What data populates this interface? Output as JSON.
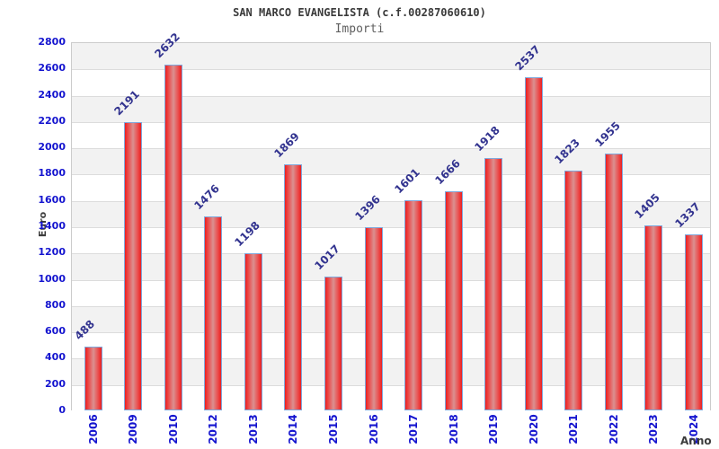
{
  "header": {
    "title": "SAN MARCO EVANGELISTA (c.f.00287060610)",
    "subtitle": "Importi"
  },
  "axes": {
    "y_label": "Euro",
    "x_label": "Anno",
    "y_ticks": [
      0,
      200,
      400,
      600,
      800,
      1000,
      1200,
      1400,
      1600,
      1800,
      2000,
      2200,
      2400,
      2600,
      2800
    ]
  },
  "chart_data": {
    "type": "bar",
    "title": "SAN MARCO EVANGELISTA (c.f.00287060610)",
    "subtitle": "Importi",
    "xlabel": "Anno",
    "ylabel": "Euro",
    "categories": [
      "2006",
      "2009",
      "2010",
      "2012",
      "2013",
      "2014",
      "2015",
      "2016",
      "2017",
      "2018",
      "2019",
      "2020",
      "2021",
      "2022",
      "2023",
      "2024"
    ],
    "values": [
      488,
      2191,
      2632,
      1476,
      1198,
      1869,
      1017,
      1396,
      1601,
      1666,
      1918,
      2537,
      1823,
      1955,
      1405,
      1337
    ],
    "ylim": [
      0,
      2800
    ],
    "y_tick_step": 200,
    "grid": "horizontal-bands-alternating",
    "legend": "none",
    "value_labels": "rotated-45-above-bars",
    "x_tick_rotation": -90
  },
  "colors": {
    "bar_edge_red": "#e82020",
    "bar_center_pink": "#db9090",
    "bar_border_blue": "#7fa8dc",
    "tick_label_blue": "#1414cf",
    "value_label_navy": "#32338f",
    "band_gray": "#f2f2f2",
    "gridline_gray": "#dcdcdc",
    "plot_border_gray": "#cccccc",
    "title_gray": "#3a3a3a",
    "subtitle_gray": "#5f5f5f"
  }
}
